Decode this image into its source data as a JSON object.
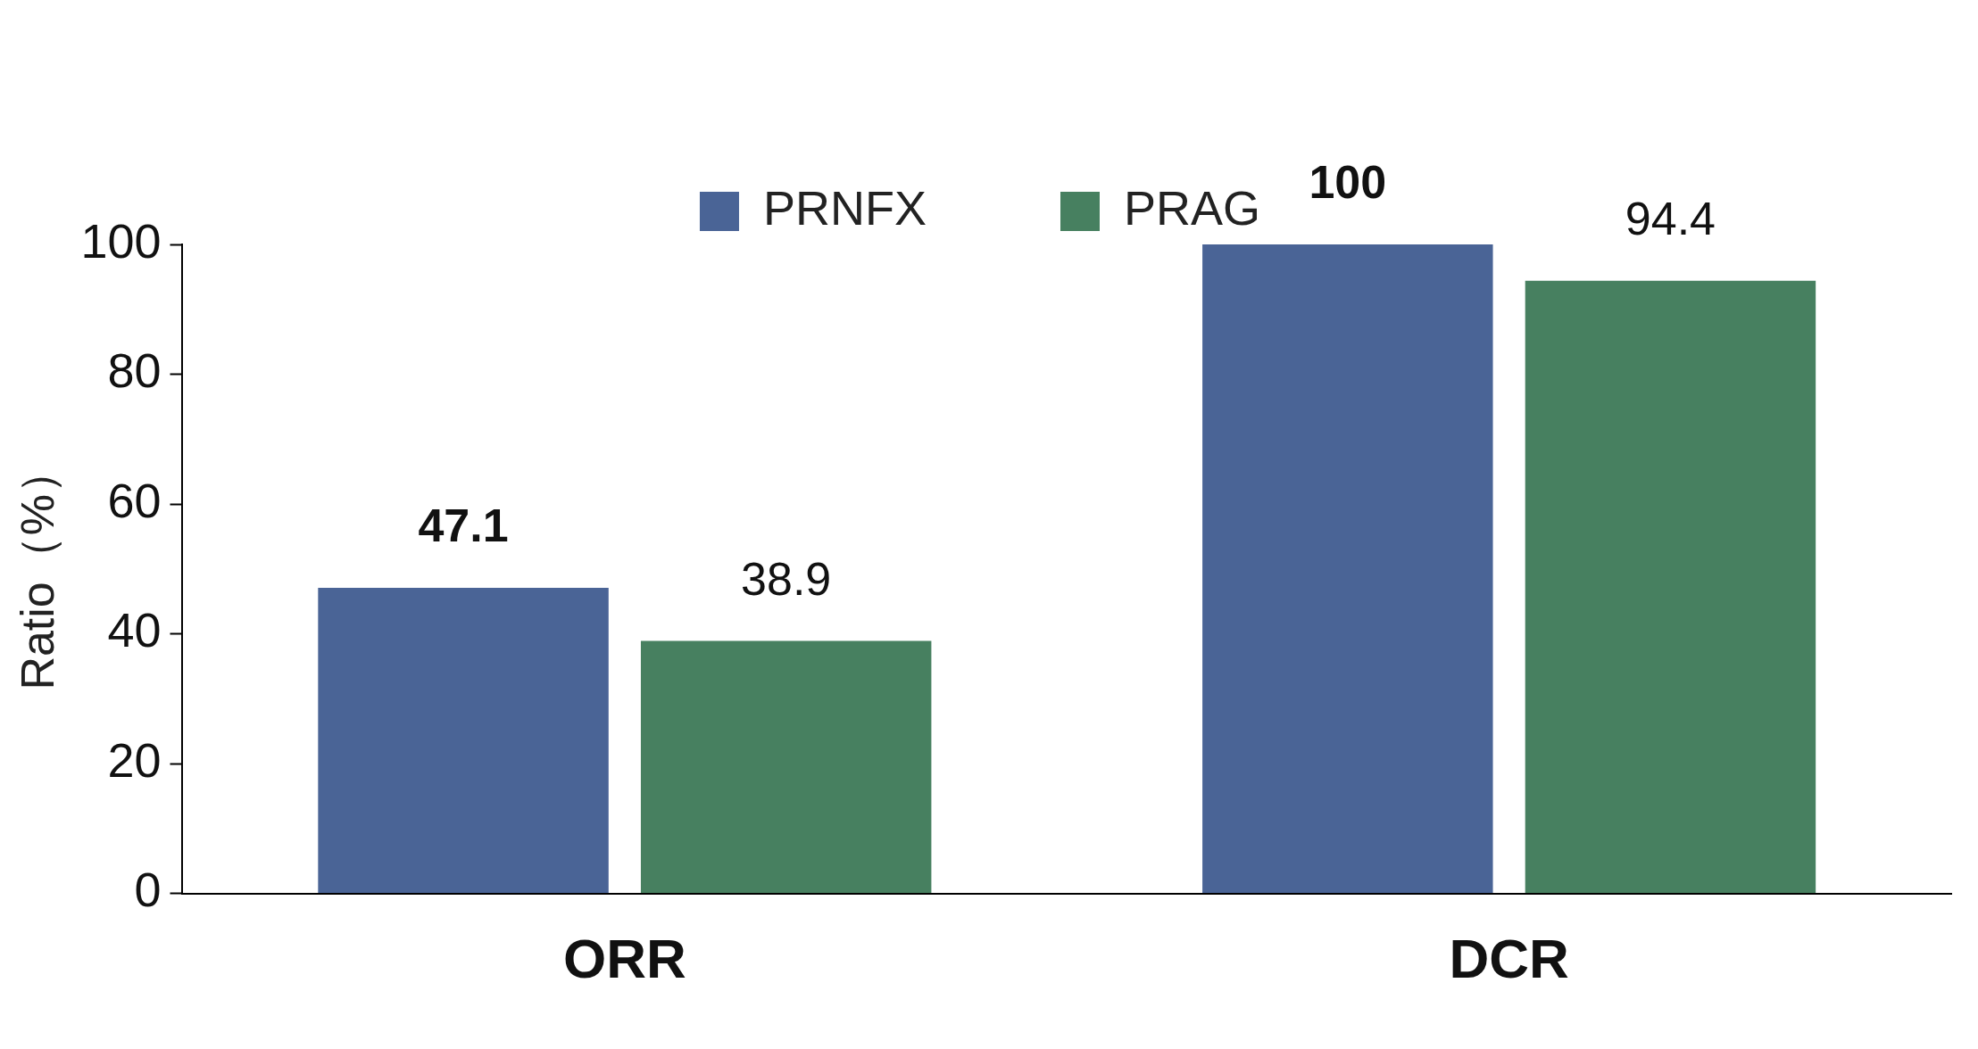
{
  "chart_data": {
    "type": "bar",
    "ylabel": "Ratio（%）",
    "categories": [
      "ORR",
      "DCR"
    ],
    "series": [
      {
        "name": "PRNFX",
        "color": "#4a6496",
        "values": [
          47.1,
          100
        ]
      },
      {
        "name": "PRAG",
        "color": "#478060",
        "values": [
          38.9,
          94.4
        ]
      }
    ],
    "ylim": [
      0,
      100
    ],
    "yticks": [
      0,
      20,
      40,
      60,
      80,
      100
    ],
    "grid": false,
    "legend": "top",
    "data_labels": true
  }
}
